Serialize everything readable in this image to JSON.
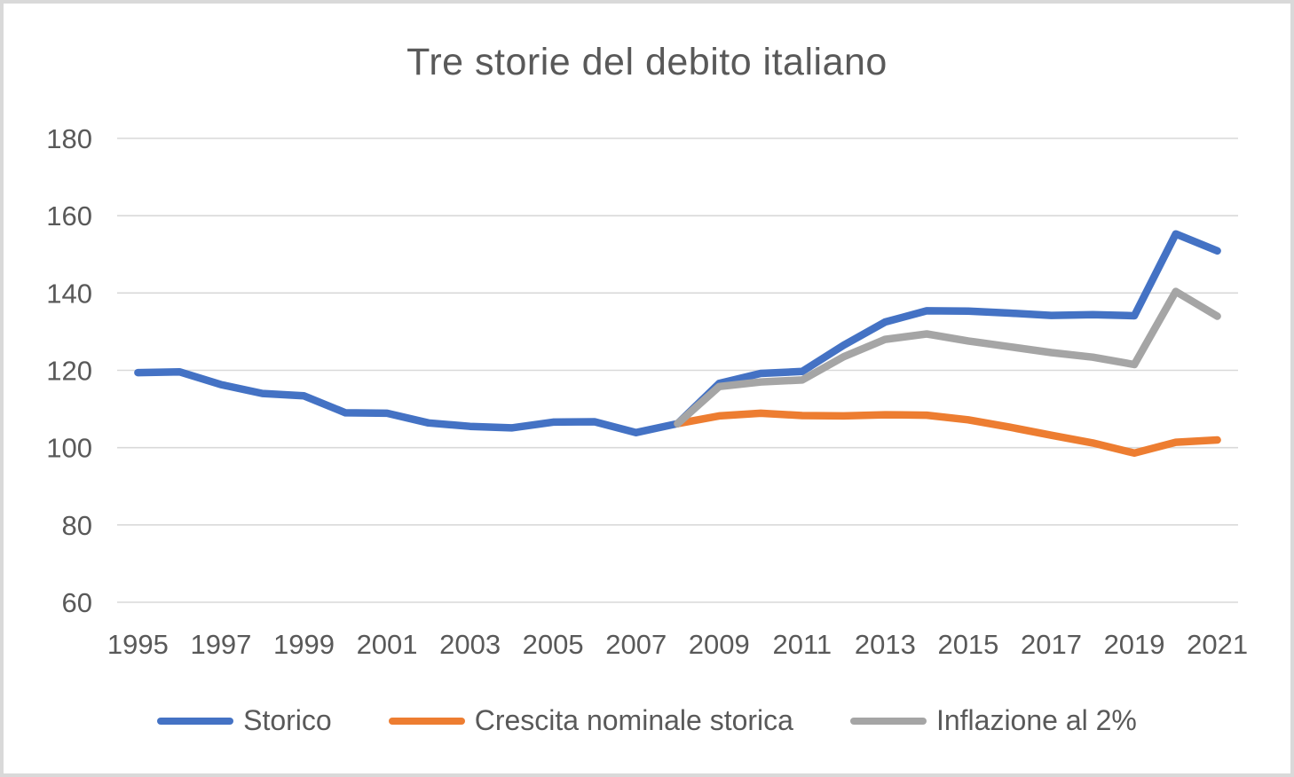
{
  "chart_data": {
    "type": "line",
    "title": "Tre storie del debito italiano",
    "xlabel": "",
    "ylabel": "",
    "xlim": [
      1995,
      2021
    ],
    "ylim": [
      60,
      180
    ],
    "xticks": [
      1995,
      1997,
      1999,
      2001,
      2003,
      2005,
      2007,
      2009,
      2011,
      2013,
      2015,
      2017,
      2019,
      2021
    ],
    "yticks": [
      60,
      80,
      100,
      120,
      140,
      160,
      180
    ],
    "grid": "horizontal",
    "legend_position": "bottom",
    "text_color": "#595959",
    "gridline_color": "#d9d9d9",
    "series": [
      {
        "name": "Storico",
        "color": "#4472C4",
        "start_year": 1995,
        "values": [
          119.4,
          119.6,
          116.3,
          114.0,
          113.4,
          109.0,
          108.9,
          106.4,
          105.5,
          105.1,
          106.6,
          106.7,
          103.9,
          106.2,
          116.6,
          119.2,
          119.7,
          126.5,
          132.5,
          135.4,
          135.3,
          134.8,
          134.2,
          134.4,
          134.1,
          155.3,
          150.9
        ]
      },
      {
        "name": "Crescita nominale storica",
        "color": "#ED7D31",
        "start_year": 2008,
        "values": [
          106.2,
          108.2,
          108.9,
          108.3,
          108.2,
          108.5,
          108.4,
          107.2,
          105.3,
          103.2,
          101.2,
          98.6,
          101.4,
          102.0
        ]
      },
      {
        "name": "Inflazione al 2%",
        "color": "#A5A5A5",
        "start_year": 2008,
        "values": [
          106.2,
          115.8,
          117.0,
          117.5,
          123.5,
          128.0,
          129.4,
          127.6,
          126.1,
          124.6,
          123.4,
          121.5,
          140.4,
          134.0
        ]
      }
    ]
  }
}
